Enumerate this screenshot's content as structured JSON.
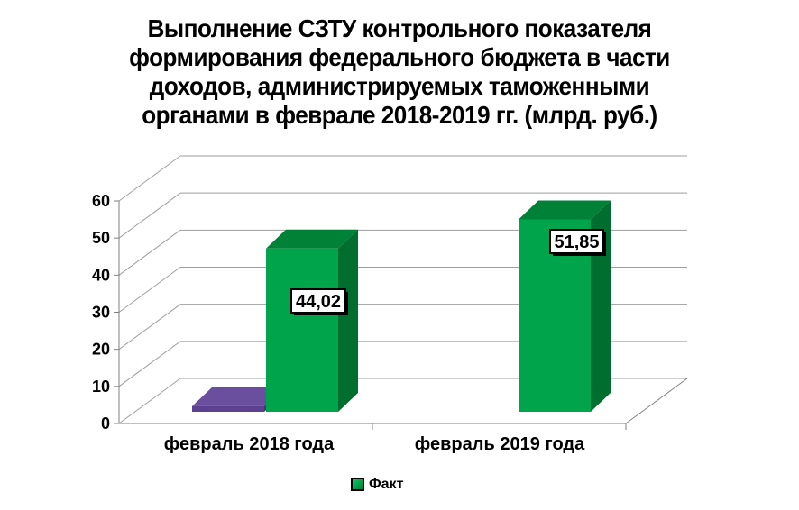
{
  "title": {
    "lines": [
      "Выполнение СЗТУ контрольного показателя",
      "формирования федерального бюджета в части",
      "доходов, администрируемых таможенными",
      "органами в феврале 2018-2019 гг. (млрд. руб.)"
    ]
  },
  "legend": {
    "items": [
      {
        "label": "Факт",
        "color": "#00a54b"
      }
    ]
  },
  "chart_data": {
    "type": "bar",
    "projection": "3d",
    "title": "Выполнение СЗТУ контрольного показателя формирования федерального бюджета в части доходов, администрируемых таможенными органами в феврале 2018-2019 гг. (млрд. руб.)",
    "categories": [
      "февраль 2018 года",
      "февраль 2019 года"
    ],
    "series": [
      {
        "name": "",
        "values": [
          1.5,
          0
        ],
        "labels": [
          "",
          ""
        ]
      },
      {
        "name": "Факт",
        "values": [
          44.02,
          51.85
        ],
        "labels": [
          "44,02",
          "51,85"
        ]
      }
    ],
    "xlabel": "",
    "ylabel": "",
    "ylim": [
      0,
      60
    ],
    "yticks": [
      0,
      10,
      20,
      30,
      40,
      50,
      60
    ],
    "grid": true,
    "legend_position": "bottom"
  },
  "colors": {
    "background": "#ffffff",
    "text": "#000000",
    "gridline": "#9e9e9e",
    "axis": "#808080",
    "label_box_bg": "#ffffff",
    "label_box_border": "#000000",
    "label_box_shadow": "#000000",
    "series_faces": [
      {
        "front": "#5b4190",
        "top": "#6b4f9f",
        "side": "#4a3478"
      },
      {
        "front": "#00a54b",
        "top": "#008138",
        "side": "#006e2f"
      }
    ]
  }
}
